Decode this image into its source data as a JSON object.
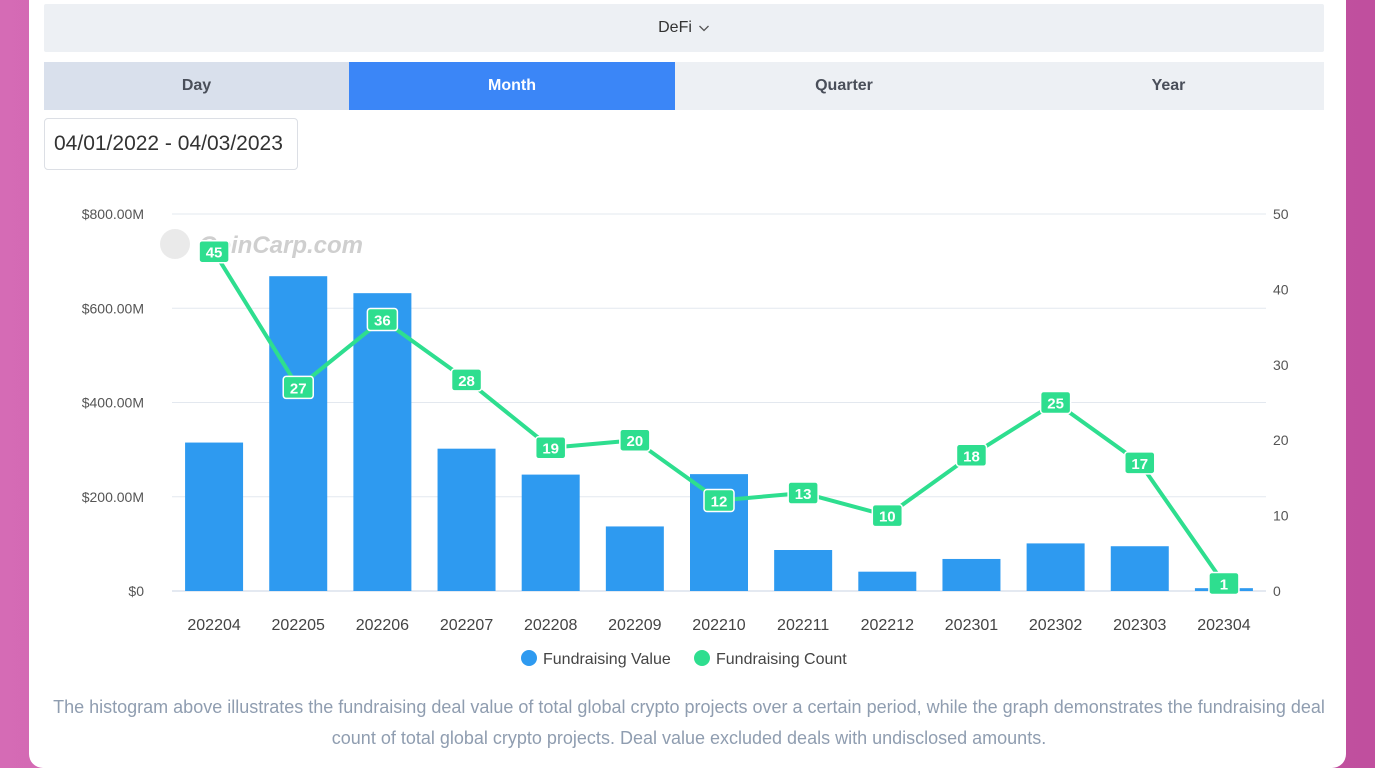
{
  "filter": {
    "category": "DeFi"
  },
  "period_tabs": [
    "Day",
    "Month",
    "Quarter",
    "Year"
  ],
  "selected_tab": "Month",
  "date_range": "04/01/2022 - 04/03/2023",
  "watermark": "CoinCarp.com",
  "caption": "The histogram above illustrates the fundraising deal value of total global crypto projects over a certain period, while the graph demonstrates the fundraising deal count of total global crypto projects. Deal value excluded deals with undisclosed amounts.",
  "colors": {
    "bar": "#2e9af0",
    "line": "#2ede8f",
    "accent": "#3b86f7"
  },
  "chart_data": {
    "type": "bar+line",
    "categories": [
      "202204",
      "202205",
      "202206",
      "202207",
      "202208",
      "202209",
      "202210",
      "202211",
      "202212",
      "202301",
      "202302",
      "202303",
      "202304"
    ],
    "series": [
      {
        "name": "Fundraising Value",
        "type": "bar",
        "axis": "left",
        "values": [
          315,
          668,
          632,
          302,
          247,
          137,
          248,
          87,
          41,
          68,
          101,
          95,
          6
        ]
      },
      {
        "name": "Fundraising Count",
        "type": "line",
        "axis": "right",
        "values": [
          45,
          27,
          36,
          28,
          19,
          20,
          12,
          13,
          10,
          18,
          25,
          17,
          1
        ]
      }
    ],
    "y_left": {
      "ylim": [
        0,
        800
      ],
      "ticks": [
        "$0",
        "$200.00M",
        "$400.00M",
        "$600.00M",
        "$800.00M"
      ],
      "unit": "$M"
    },
    "y_right": {
      "ylim": [
        0,
        50
      ],
      "ticks": [
        "0",
        "10",
        "20",
        "30",
        "40",
        "50"
      ]
    },
    "grid": true,
    "legend": "bottom-center"
  }
}
